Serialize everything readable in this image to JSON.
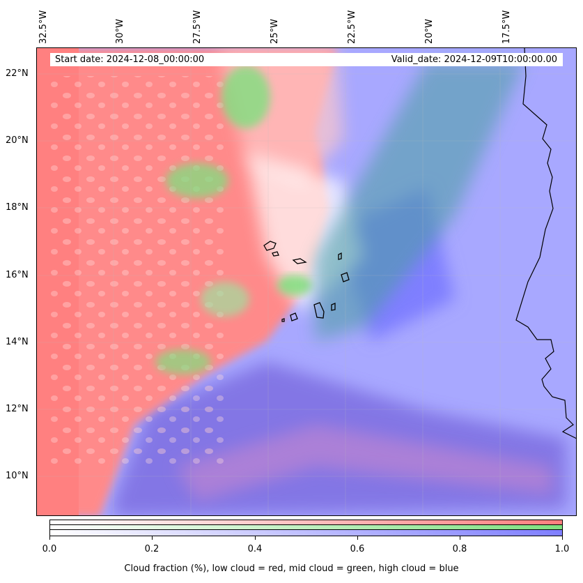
{
  "map": {
    "lon_labels": [
      "32.5°W",
      "30°W",
      "27.5°W",
      "25°W",
      "22.5°W",
      "20°W",
      "17.5°W"
    ],
    "lat_labels": [
      "22°N",
      "20°N",
      "18°N",
      "16°N",
      "14°N",
      "12°N",
      "10°N"
    ],
    "start_date": "Start date: 2024-12-08_00:00:00",
    "valid_date": "Valid_date: 2024-12-09T10:00:00.00",
    "layers": {
      "low_cloud_color": "#ff7f7f",
      "mid_cloud_color": "#7fe07f",
      "high_cloud_color": "#7f7fff"
    },
    "features": [
      "Cape Verde islands",
      "West African coastline"
    ]
  },
  "colorbar": {
    "ticks": [
      "0.0",
      "0.2",
      "0.4",
      "0.6",
      "0.8",
      "1.0"
    ],
    "title": "Cloud fraction (%), low cloud = red, mid cloud = green, high cloud = blue"
  }
}
